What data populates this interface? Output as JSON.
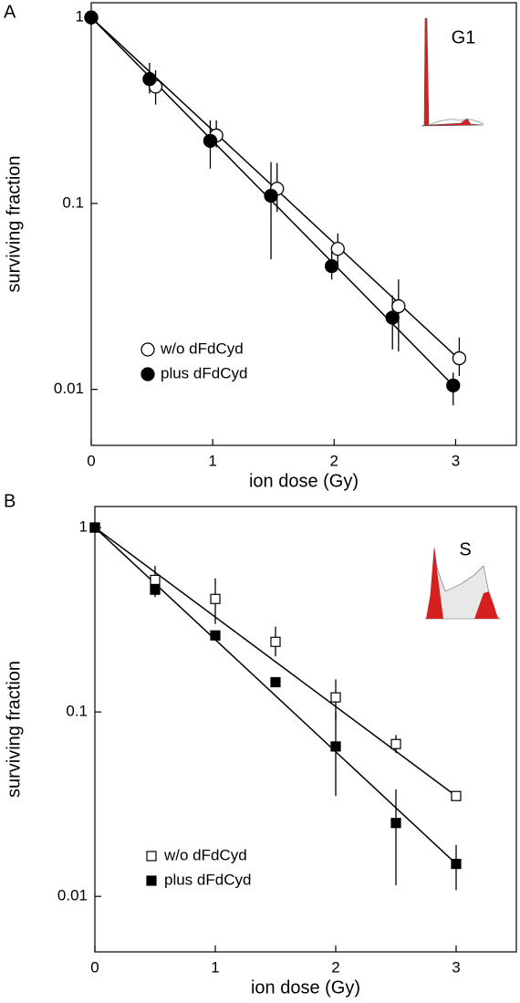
{
  "chart_data": [
    {
      "type": "scatter",
      "panel_label": "A",
      "inset_label": "G1",
      "xlabel": "ion dose (Gy)",
      "ylabel": "surviving fraction",
      "xlim": [
        0,
        3.5
      ],
      "xticks": [
        0,
        1,
        2,
        3
      ],
      "ylim": [
        0.005,
        1.2
      ],
      "yticks": [
        0.01,
        0.1,
        1
      ],
      "yscale": "log",
      "legend": "lower left",
      "series": [
        {
          "name": "w/o dFdCyd",
          "color": "#ffffff",
          "marker": "circle",
          "x": [
            0,
            0.53,
            1.03,
            1.53,
            2.03,
            2.53,
            3.03
          ],
          "values": [
            1,
            0.425,
            0.232,
            0.12,
            0.057,
            0.028,
            0.0147
          ],
          "lower": [
            null,
            0.34,
            0.2,
            0.09,
            0.047,
            0.016,
            0.0118
          ],
          "upper": [
            null,
            0.52,
            0.28,
            0.165,
            0.069,
            0.039,
            0.019
          ],
          "fit_x": [
            0,
            3.03
          ],
          "fit": [
            1,
            0.0145
          ]
        },
        {
          "name": "plus dFdCyd",
          "color": "#000000",
          "marker": "circle",
          "x": [
            0,
            0.48,
            0.98,
            1.48,
            1.98,
            2.48,
            2.98
          ],
          "values": [
            1,
            0.466,
            0.217,
            0.11,
            0.046,
            0.0243,
            0.0105
          ],
          "lower": [
            null,
            0.39,
            0.154,
            0.05,
            0.039,
            0.0164,
            0.0082
          ],
          "upper": [
            null,
            0.57,
            0.28,
            0.167,
            0.058,
            0.032,
            0.0123
          ],
          "fit_x": [
            0,
            2.98
          ],
          "fit": [
            1,
            0.0105
          ]
        }
      ]
    },
    {
      "type": "scatter",
      "panel_label": "B",
      "inset_label": "S",
      "xlabel": "ion dose (Gy)",
      "ylabel": "surviving fraction",
      "xlim": [
        0,
        3.5
      ],
      "xticks": [
        0,
        1,
        2,
        3
      ],
      "ylim": [
        0.005,
        1.3
      ],
      "yticks": [
        0.01,
        0.1,
        1
      ],
      "yscale": "log",
      "legend": "lower left",
      "series": [
        {
          "name": "w/o dFdCyd",
          "color": "#ffffff",
          "marker": "square",
          "x": [
            0,
            0.5,
            1,
            1.5,
            2,
            2.5,
            3
          ],
          "values": [
            1,
            0.52,
            0.41,
            0.24,
            0.12,
            0.067,
            0.035
          ],
          "lower": [
            null,
            0.45,
            0.3,
            0.2,
            0.09,
            0.06,
            null
          ],
          "upper": [
            null,
            0.62,
            0.53,
            0.29,
            0.15,
            0.075,
            null
          ],
          "fit_x": [
            0,
            3
          ],
          "fit": [
            1,
            0.035
          ]
        },
        {
          "name": "plus dFdCyd",
          "color": "#000000",
          "marker": "square",
          "x": [
            0,
            0.5,
            1,
            1.5,
            2,
            2.5,
            3
          ],
          "values": [
            1,
            0.46,
            0.26,
            0.145,
            0.065,
            0.025,
            0.015
          ],
          "lower": [
            null,
            0.42,
            null,
            null,
            0.035,
            0.0115,
            0.0108
          ],
          "upper": [
            null,
            0.5,
            null,
            null,
            0.1,
            0.038,
            0.019
          ],
          "fit_x": [
            0,
            3
          ],
          "fit": [
            1,
            0.015
          ]
        }
      ]
    }
  ]
}
